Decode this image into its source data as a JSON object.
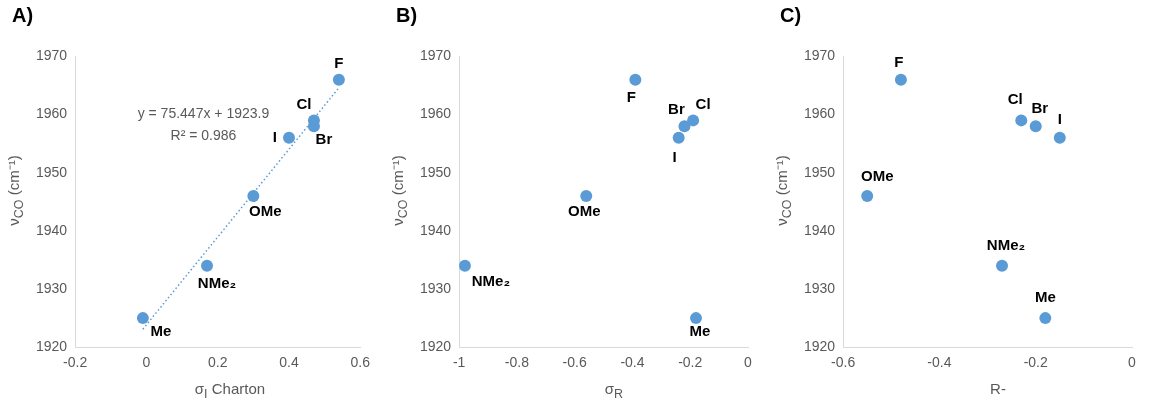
{
  "chart_data": [
    {
      "type": "scatter",
      "title": "A)",
      "xlabel": "σ$_{I}$ Charton",
      "ylabel": "ν$_{CO}$ (cm⁻¹)",
      "xlim": [
        -0.2,
        0.6
      ],
      "xticks": [
        -0.2,
        0,
        0.2,
        0.4,
        0.6
      ],
      "ylim": [
        1920,
        1970
      ],
      "yticks": [
        1920,
        1930,
        1940,
        1950,
        1960,
        1970
      ],
      "grid": false,
      "marker": "circle",
      "legend": false,
      "series": [
        {
          "color": "#5b9bd5",
          "x": [
            0.54,
            0.47,
            0.47,
            0.4,
            0.3,
            0.17,
            -0.01
          ],
          "values": [
            1966,
            1959,
            1958,
            1956,
            1946,
            1934,
            1925
          ]
        },
        {
          "type": "line",
          "color": "#5b9bd5",
          "line_style": "dotted",
          "marker": "none",
          "x": [
            -0.01,
            0.54
          ],
          "values": [
            1923.1,
            1964.6
          ]
        }
      ],
      "annotations": [
        "y = 75.447x + 1923.9",
        "R² = 0.986",
        {
          "text": "F",
          "x": 0.54,
          "y": 1966
        },
        {
          "text": "Cl",
          "x": 0.47,
          "y": 1959
        },
        {
          "text": "Br",
          "x": 0.47,
          "y": 1958
        },
        {
          "text": "I",
          "x": 0.4,
          "y": 1956
        },
        {
          "text": "OMe",
          "x": 0.3,
          "y": 1946
        },
        {
          "text": "NMe₂",
          "x": 0.17,
          "y": 1934
        },
        {
          "text": "Me",
          "x": -0.01,
          "y": 1925
        }
      ]
    },
    {
      "type": "scatter",
      "title": "B)",
      "xlabel": "σ$_{R}$",
      "ylabel": "ν$_{CO}$ (cm⁻¹)",
      "xlim": [
        -1,
        0
      ],
      "xticks": [
        -1,
        -0.8,
        -0.6,
        -0.4,
        -0.2,
        0
      ],
      "ylim": [
        1920,
        1970
      ],
      "yticks": [
        1920,
        1930,
        1940,
        1950,
        1960,
        1970
      ],
      "grid": false,
      "marker": "circle",
      "legend": false,
      "series": [
        {
          "color": "#5b9bd5",
          "x": [
            -0.39,
            -0.19,
            -0.22,
            -0.24,
            -0.56,
            -0.98,
            -0.18
          ],
          "values": [
            1966,
            1959,
            1958,
            1956,
            1946,
            1934,
            1925
          ]
        }
      ],
      "annotations": [
        {
          "text": "F",
          "x": -0.39,
          "y": 1966
        },
        {
          "text": "Cl",
          "x": -0.19,
          "y": 1959
        },
        {
          "text": "Br",
          "x": -0.22,
          "y": 1958
        },
        {
          "text": "I",
          "x": -0.24,
          "y": 1956
        },
        {
          "text": "OMe",
          "x": -0.56,
          "y": 1946
        },
        {
          "text": "NMe₂",
          "x": -0.98,
          "y": 1934
        },
        {
          "text": "Me",
          "x": -0.18,
          "y": 1925
        }
      ]
    },
    {
      "type": "scatter",
      "title": "C)",
      "xlabel": "R-",
      "ylabel": "ν$_{CO}$ (cm⁻¹)",
      "xlim": [
        -0.6,
        0
      ],
      "xticks": [
        -0.6,
        -0.4,
        -0.2,
        0
      ],
      "ylim": [
        1920,
        1970
      ],
      "yticks": [
        1920,
        1930,
        1940,
        1950,
        1960,
        1970
      ],
      "grid": false,
      "marker": "circle",
      "legend": false,
      "series": [
        {
          "color": "#5b9bd5",
          "x": [
            -0.48,
            -0.23,
            -0.2,
            -0.15,
            -0.55,
            -0.27,
            -0.18
          ],
          "values": [
            1966,
            1959,
            1958,
            1956,
            1946,
            1934,
            1925
          ]
        }
      ],
      "annotations": [
        {
          "text": "F",
          "x": -0.48,
          "y": 1966
        },
        {
          "text": "Cl",
          "x": -0.23,
          "y": 1959
        },
        {
          "text": "Br",
          "x": -0.2,
          "y": 1958
        },
        {
          "text": "I",
          "x": -0.15,
          "y": 1956
        },
        {
          "text": "OMe",
          "x": -0.55,
          "y": 1946
        },
        {
          "text": "NMe₂",
          "x": -0.27,
          "y": 1934
        },
        {
          "text": "Me",
          "x": -0.18,
          "y": 1925
        }
      ]
    }
  ]
}
